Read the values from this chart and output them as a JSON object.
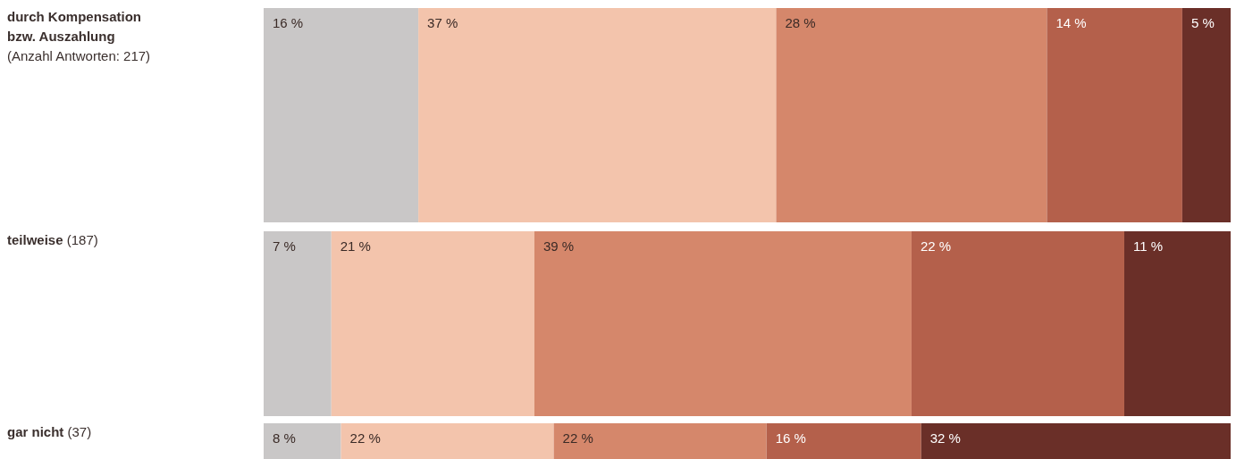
{
  "chart_data": {
    "type": "bar",
    "orientation": "horizontal",
    "stacked": true,
    "tick_labels": false,
    "xlim": [
      0,
      100
    ],
    "categories": [
      "durch Kompensation bzw. Auszahlung (Anzahl Antworten: 217)",
      "teilweise (187)",
      "gar nicht (37)"
    ],
    "series": [
      {
        "color": "#c9c7c7",
        "values": [
          16,
          7,
          8
        ],
        "value_labels": [
          "16 %",
          "7 %",
          "8 %"
        ]
      },
      {
        "color": "#f3c4ac",
        "values": [
          37,
          21,
          22
        ],
        "value_labels": [
          "37 %",
          "21 %",
          "22 %"
        ]
      },
      {
        "color": "#d5876b",
        "values": [
          28,
          39,
          22
        ],
        "value_labels": [
          "28 %",
          "39 %",
          "22 %"
        ]
      },
      {
        "color": "#b4604b",
        "values": [
          14,
          22,
          16
        ],
        "value_labels": [
          "14 %",
          "22 %",
          "16 %"
        ]
      },
      {
        "color": "#6a2f28",
        "values": [
          5,
          11,
          32
        ],
        "value_labels": [
          "5 %",
          "11 %",
          "32 %"
        ]
      }
    ]
  }
}
